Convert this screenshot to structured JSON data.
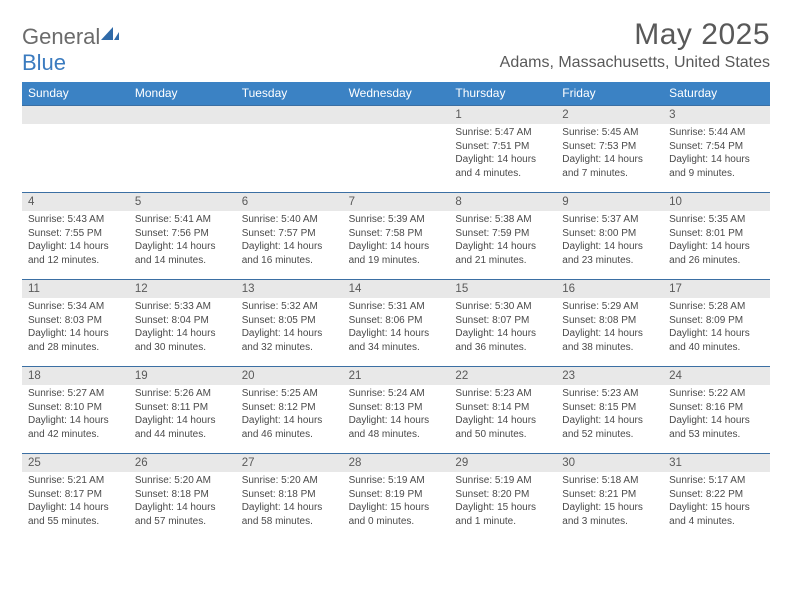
{
  "brand": {
    "part1": "General",
    "part2": "Blue"
  },
  "title": "May 2025",
  "location": "Adams, Massachusetts, United States",
  "colors": {
    "header_bg": "#3b82c4",
    "header_text": "#ffffff",
    "row_border": "#3b6fa3",
    "daynum_bg": "#e8e8e8",
    "text": "#4a4a4a",
    "title_text": "#595959",
    "logo_gray": "#6b6b6b",
    "logo_blue": "#3b7bbf"
  },
  "weekdays": [
    "Sunday",
    "Monday",
    "Tuesday",
    "Wednesday",
    "Thursday",
    "Friday",
    "Saturday"
  ],
  "weeks": [
    [
      {
        "num": "",
        "lines": []
      },
      {
        "num": "",
        "lines": []
      },
      {
        "num": "",
        "lines": []
      },
      {
        "num": "",
        "lines": []
      },
      {
        "num": "1",
        "lines": [
          "Sunrise: 5:47 AM",
          "Sunset: 7:51 PM",
          "Daylight: 14 hours",
          "and 4 minutes."
        ]
      },
      {
        "num": "2",
        "lines": [
          "Sunrise: 5:45 AM",
          "Sunset: 7:53 PM",
          "Daylight: 14 hours",
          "and 7 minutes."
        ]
      },
      {
        "num": "3",
        "lines": [
          "Sunrise: 5:44 AM",
          "Sunset: 7:54 PM",
          "Daylight: 14 hours",
          "and 9 minutes."
        ]
      }
    ],
    [
      {
        "num": "4",
        "lines": [
          "Sunrise: 5:43 AM",
          "Sunset: 7:55 PM",
          "Daylight: 14 hours",
          "and 12 minutes."
        ]
      },
      {
        "num": "5",
        "lines": [
          "Sunrise: 5:41 AM",
          "Sunset: 7:56 PM",
          "Daylight: 14 hours",
          "and 14 minutes."
        ]
      },
      {
        "num": "6",
        "lines": [
          "Sunrise: 5:40 AM",
          "Sunset: 7:57 PM",
          "Daylight: 14 hours",
          "and 16 minutes."
        ]
      },
      {
        "num": "7",
        "lines": [
          "Sunrise: 5:39 AM",
          "Sunset: 7:58 PM",
          "Daylight: 14 hours",
          "and 19 minutes."
        ]
      },
      {
        "num": "8",
        "lines": [
          "Sunrise: 5:38 AM",
          "Sunset: 7:59 PM",
          "Daylight: 14 hours",
          "and 21 minutes."
        ]
      },
      {
        "num": "9",
        "lines": [
          "Sunrise: 5:37 AM",
          "Sunset: 8:00 PM",
          "Daylight: 14 hours",
          "and 23 minutes."
        ]
      },
      {
        "num": "10",
        "lines": [
          "Sunrise: 5:35 AM",
          "Sunset: 8:01 PM",
          "Daylight: 14 hours",
          "and 26 minutes."
        ]
      }
    ],
    [
      {
        "num": "11",
        "lines": [
          "Sunrise: 5:34 AM",
          "Sunset: 8:03 PM",
          "Daylight: 14 hours",
          "and 28 minutes."
        ]
      },
      {
        "num": "12",
        "lines": [
          "Sunrise: 5:33 AM",
          "Sunset: 8:04 PM",
          "Daylight: 14 hours",
          "and 30 minutes."
        ]
      },
      {
        "num": "13",
        "lines": [
          "Sunrise: 5:32 AM",
          "Sunset: 8:05 PM",
          "Daylight: 14 hours",
          "and 32 minutes."
        ]
      },
      {
        "num": "14",
        "lines": [
          "Sunrise: 5:31 AM",
          "Sunset: 8:06 PM",
          "Daylight: 14 hours",
          "and 34 minutes."
        ]
      },
      {
        "num": "15",
        "lines": [
          "Sunrise: 5:30 AM",
          "Sunset: 8:07 PM",
          "Daylight: 14 hours",
          "and 36 minutes."
        ]
      },
      {
        "num": "16",
        "lines": [
          "Sunrise: 5:29 AM",
          "Sunset: 8:08 PM",
          "Daylight: 14 hours",
          "and 38 minutes."
        ]
      },
      {
        "num": "17",
        "lines": [
          "Sunrise: 5:28 AM",
          "Sunset: 8:09 PM",
          "Daylight: 14 hours",
          "and 40 minutes."
        ]
      }
    ],
    [
      {
        "num": "18",
        "lines": [
          "Sunrise: 5:27 AM",
          "Sunset: 8:10 PM",
          "Daylight: 14 hours",
          "and 42 minutes."
        ]
      },
      {
        "num": "19",
        "lines": [
          "Sunrise: 5:26 AM",
          "Sunset: 8:11 PM",
          "Daylight: 14 hours",
          "and 44 minutes."
        ]
      },
      {
        "num": "20",
        "lines": [
          "Sunrise: 5:25 AM",
          "Sunset: 8:12 PM",
          "Daylight: 14 hours",
          "and 46 minutes."
        ]
      },
      {
        "num": "21",
        "lines": [
          "Sunrise: 5:24 AM",
          "Sunset: 8:13 PM",
          "Daylight: 14 hours",
          "and 48 minutes."
        ]
      },
      {
        "num": "22",
        "lines": [
          "Sunrise: 5:23 AM",
          "Sunset: 8:14 PM",
          "Daylight: 14 hours",
          "and 50 minutes."
        ]
      },
      {
        "num": "23",
        "lines": [
          "Sunrise: 5:23 AM",
          "Sunset: 8:15 PM",
          "Daylight: 14 hours",
          "and 52 minutes."
        ]
      },
      {
        "num": "24",
        "lines": [
          "Sunrise: 5:22 AM",
          "Sunset: 8:16 PM",
          "Daylight: 14 hours",
          "and 53 minutes."
        ]
      }
    ],
    [
      {
        "num": "25",
        "lines": [
          "Sunrise: 5:21 AM",
          "Sunset: 8:17 PM",
          "Daylight: 14 hours",
          "and 55 minutes."
        ]
      },
      {
        "num": "26",
        "lines": [
          "Sunrise: 5:20 AM",
          "Sunset: 8:18 PM",
          "Daylight: 14 hours",
          "and 57 minutes."
        ]
      },
      {
        "num": "27",
        "lines": [
          "Sunrise: 5:20 AM",
          "Sunset: 8:18 PM",
          "Daylight: 14 hours",
          "and 58 minutes."
        ]
      },
      {
        "num": "28",
        "lines": [
          "Sunrise: 5:19 AM",
          "Sunset: 8:19 PM",
          "Daylight: 15 hours",
          "and 0 minutes."
        ]
      },
      {
        "num": "29",
        "lines": [
          "Sunrise: 5:19 AM",
          "Sunset: 8:20 PM",
          "Daylight: 15 hours",
          "and 1 minute."
        ]
      },
      {
        "num": "30",
        "lines": [
          "Sunrise: 5:18 AM",
          "Sunset: 8:21 PM",
          "Daylight: 15 hours",
          "and 3 minutes."
        ]
      },
      {
        "num": "31",
        "lines": [
          "Sunrise: 5:17 AM",
          "Sunset: 8:22 PM",
          "Daylight: 15 hours",
          "and 4 minutes."
        ]
      }
    ]
  ]
}
